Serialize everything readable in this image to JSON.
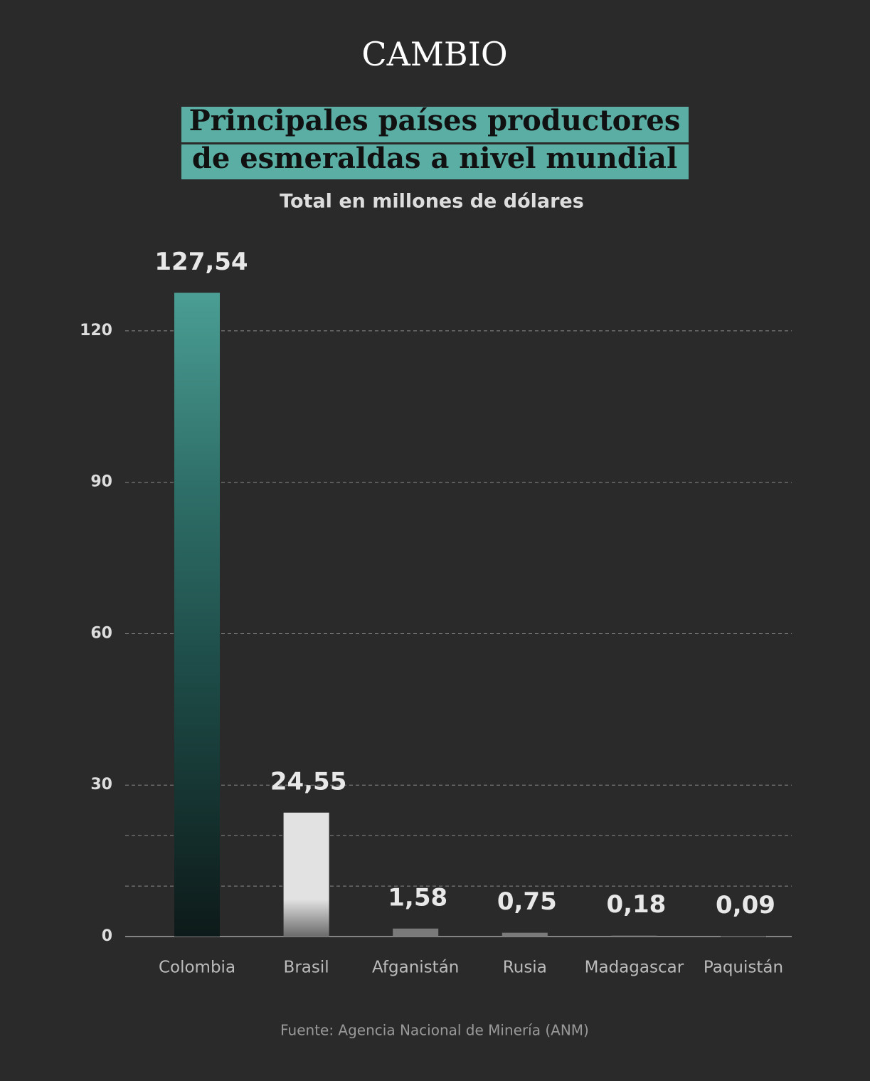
{
  "brand": "CAMBIO",
  "chart_data": {
    "type": "bar",
    "title": [
      "Principales países productores",
      "de esmeraldas a nivel mundial"
    ],
    "subtitle": "Total en millones de dólares",
    "categories": [
      "Colombia",
      "Brasil",
      "Afganistán",
      "Rusia",
      "Madagascar",
      "Paquistán"
    ],
    "values": [
      127.54,
      24.55,
      1.58,
      0.75,
      0.18,
      0.09
    ],
    "value_labels": [
      "127,54",
      "24,55",
      "1,58",
      "0,75",
      "0,18",
      "0,09"
    ],
    "colors": [
      "#3e8e85",
      "#e2e2e2",
      "#7a7a7a",
      "#7a7a7a",
      "#7a7a7a",
      "#7a7a7a"
    ],
    "ylim": [
      0,
      130
    ],
    "yticks": [
      0,
      30,
      60,
      90,
      120
    ],
    "minor_yticks": [
      10,
      20
    ],
    "grid": true,
    "source": "Fuente: Agencia Nacional de Minería (ANM)"
  }
}
